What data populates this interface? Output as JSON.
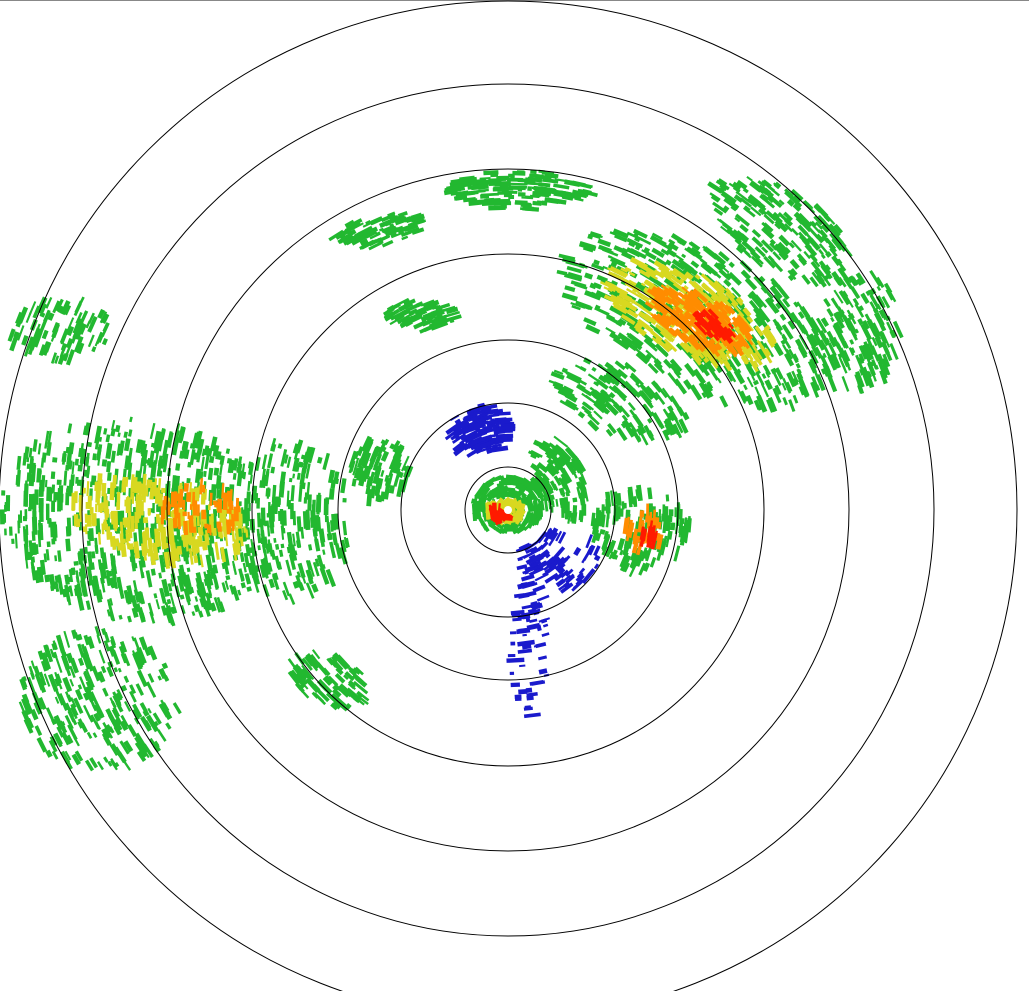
{
  "radar": {
    "background": "#ffffff",
    "ring_color": "#000000",
    "ring_count": 7,
    "palette": {
      "weak": "#1a1acc",
      "light": "#22c0a0",
      "moderate": "#22b830",
      "moderate_high": "#d8d820",
      "high": "#ff8c00",
      "very_high": "#ff1a00"
    }
  }
}
